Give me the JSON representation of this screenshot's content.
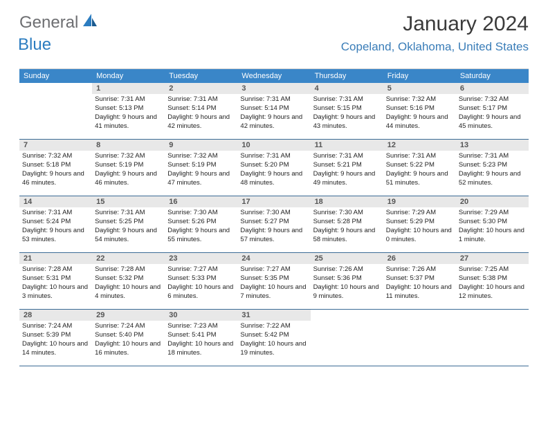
{
  "brand": {
    "text1": "General",
    "text2": "Blue",
    "color1": "#6d6e71",
    "color2": "#2b7cc0"
  },
  "title": "January 2024",
  "location": "Copeland, Oklahoma, United States",
  "title_fontsize": 30,
  "location_fontsize": 17,
  "location_color": "#3a7db8",
  "header_bg": "#3a86c8",
  "header_fg": "#ffffff",
  "daynum_bg": "#e8e8e8",
  "cell_border_color": "#3a6a95",
  "background_color": "#ffffff",
  "day_headers": [
    "Sunday",
    "Monday",
    "Tuesday",
    "Wednesday",
    "Thursday",
    "Friday",
    "Saturday"
  ],
  "start_offset": 1,
  "days": [
    {
      "n": "1",
      "sunrise": "Sunrise: 7:31 AM",
      "sunset": "Sunset: 5:13 PM",
      "daylight": "Daylight: 9 hours and 41 minutes."
    },
    {
      "n": "2",
      "sunrise": "Sunrise: 7:31 AM",
      "sunset": "Sunset: 5:14 PM",
      "daylight": "Daylight: 9 hours and 42 minutes."
    },
    {
      "n": "3",
      "sunrise": "Sunrise: 7:31 AM",
      "sunset": "Sunset: 5:14 PM",
      "daylight": "Daylight: 9 hours and 42 minutes."
    },
    {
      "n": "4",
      "sunrise": "Sunrise: 7:31 AM",
      "sunset": "Sunset: 5:15 PM",
      "daylight": "Daylight: 9 hours and 43 minutes."
    },
    {
      "n": "5",
      "sunrise": "Sunrise: 7:32 AM",
      "sunset": "Sunset: 5:16 PM",
      "daylight": "Daylight: 9 hours and 44 minutes."
    },
    {
      "n": "6",
      "sunrise": "Sunrise: 7:32 AM",
      "sunset": "Sunset: 5:17 PM",
      "daylight": "Daylight: 9 hours and 45 minutes."
    },
    {
      "n": "7",
      "sunrise": "Sunrise: 7:32 AM",
      "sunset": "Sunset: 5:18 PM",
      "daylight": "Daylight: 9 hours and 46 minutes."
    },
    {
      "n": "8",
      "sunrise": "Sunrise: 7:32 AM",
      "sunset": "Sunset: 5:19 PM",
      "daylight": "Daylight: 9 hours and 46 minutes."
    },
    {
      "n": "9",
      "sunrise": "Sunrise: 7:32 AM",
      "sunset": "Sunset: 5:19 PM",
      "daylight": "Daylight: 9 hours and 47 minutes."
    },
    {
      "n": "10",
      "sunrise": "Sunrise: 7:31 AM",
      "sunset": "Sunset: 5:20 PM",
      "daylight": "Daylight: 9 hours and 48 minutes."
    },
    {
      "n": "11",
      "sunrise": "Sunrise: 7:31 AM",
      "sunset": "Sunset: 5:21 PM",
      "daylight": "Daylight: 9 hours and 49 minutes."
    },
    {
      "n": "12",
      "sunrise": "Sunrise: 7:31 AM",
      "sunset": "Sunset: 5:22 PM",
      "daylight": "Daylight: 9 hours and 51 minutes."
    },
    {
      "n": "13",
      "sunrise": "Sunrise: 7:31 AM",
      "sunset": "Sunset: 5:23 PM",
      "daylight": "Daylight: 9 hours and 52 minutes."
    },
    {
      "n": "14",
      "sunrise": "Sunrise: 7:31 AM",
      "sunset": "Sunset: 5:24 PM",
      "daylight": "Daylight: 9 hours and 53 minutes."
    },
    {
      "n": "15",
      "sunrise": "Sunrise: 7:31 AM",
      "sunset": "Sunset: 5:25 PM",
      "daylight": "Daylight: 9 hours and 54 minutes."
    },
    {
      "n": "16",
      "sunrise": "Sunrise: 7:30 AM",
      "sunset": "Sunset: 5:26 PM",
      "daylight": "Daylight: 9 hours and 55 minutes."
    },
    {
      "n": "17",
      "sunrise": "Sunrise: 7:30 AM",
      "sunset": "Sunset: 5:27 PM",
      "daylight": "Daylight: 9 hours and 57 minutes."
    },
    {
      "n": "18",
      "sunrise": "Sunrise: 7:30 AM",
      "sunset": "Sunset: 5:28 PM",
      "daylight": "Daylight: 9 hours and 58 minutes."
    },
    {
      "n": "19",
      "sunrise": "Sunrise: 7:29 AM",
      "sunset": "Sunset: 5:29 PM",
      "daylight": "Daylight: 10 hours and 0 minutes."
    },
    {
      "n": "20",
      "sunrise": "Sunrise: 7:29 AM",
      "sunset": "Sunset: 5:30 PM",
      "daylight": "Daylight: 10 hours and 1 minute."
    },
    {
      "n": "21",
      "sunrise": "Sunrise: 7:28 AM",
      "sunset": "Sunset: 5:31 PM",
      "daylight": "Daylight: 10 hours and 3 minutes."
    },
    {
      "n": "22",
      "sunrise": "Sunrise: 7:28 AM",
      "sunset": "Sunset: 5:32 PM",
      "daylight": "Daylight: 10 hours and 4 minutes."
    },
    {
      "n": "23",
      "sunrise": "Sunrise: 7:27 AM",
      "sunset": "Sunset: 5:33 PM",
      "daylight": "Daylight: 10 hours and 6 minutes."
    },
    {
      "n": "24",
      "sunrise": "Sunrise: 7:27 AM",
      "sunset": "Sunset: 5:35 PM",
      "daylight": "Daylight: 10 hours and 7 minutes."
    },
    {
      "n": "25",
      "sunrise": "Sunrise: 7:26 AM",
      "sunset": "Sunset: 5:36 PM",
      "daylight": "Daylight: 10 hours and 9 minutes."
    },
    {
      "n": "26",
      "sunrise": "Sunrise: 7:26 AM",
      "sunset": "Sunset: 5:37 PM",
      "daylight": "Daylight: 10 hours and 11 minutes."
    },
    {
      "n": "27",
      "sunrise": "Sunrise: 7:25 AM",
      "sunset": "Sunset: 5:38 PM",
      "daylight": "Daylight: 10 hours and 12 minutes."
    },
    {
      "n": "28",
      "sunrise": "Sunrise: 7:24 AM",
      "sunset": "Sunset: 5:39 PM",
      "daylight": "Daylight: 10 hours and 14 minutes."
    },
    {
      "n": "29",
      "sunrise": "Sunrise: 7:24 AM",
      "sunset": "Sunset: 5:40 PM",
      "daylight": "Daylight: 10 hours and 16 minutes."
    },
    {
      "n": "30",
      "sunrise": "Sunrise: 7:23 AM",
      "sunset": "Sunset: 5:41 PM",
      "daylight": "Daylight: 10 hours and 18 minutes."
    },
    {
      "n": "31",
      "sunrise": "Sunrise: 7:22 AM",
      "sunset": "Sunset: 5:42 PM",
      "daylight": "Daylight: 10 hours and 19 minutes."
    }
  ]
}
